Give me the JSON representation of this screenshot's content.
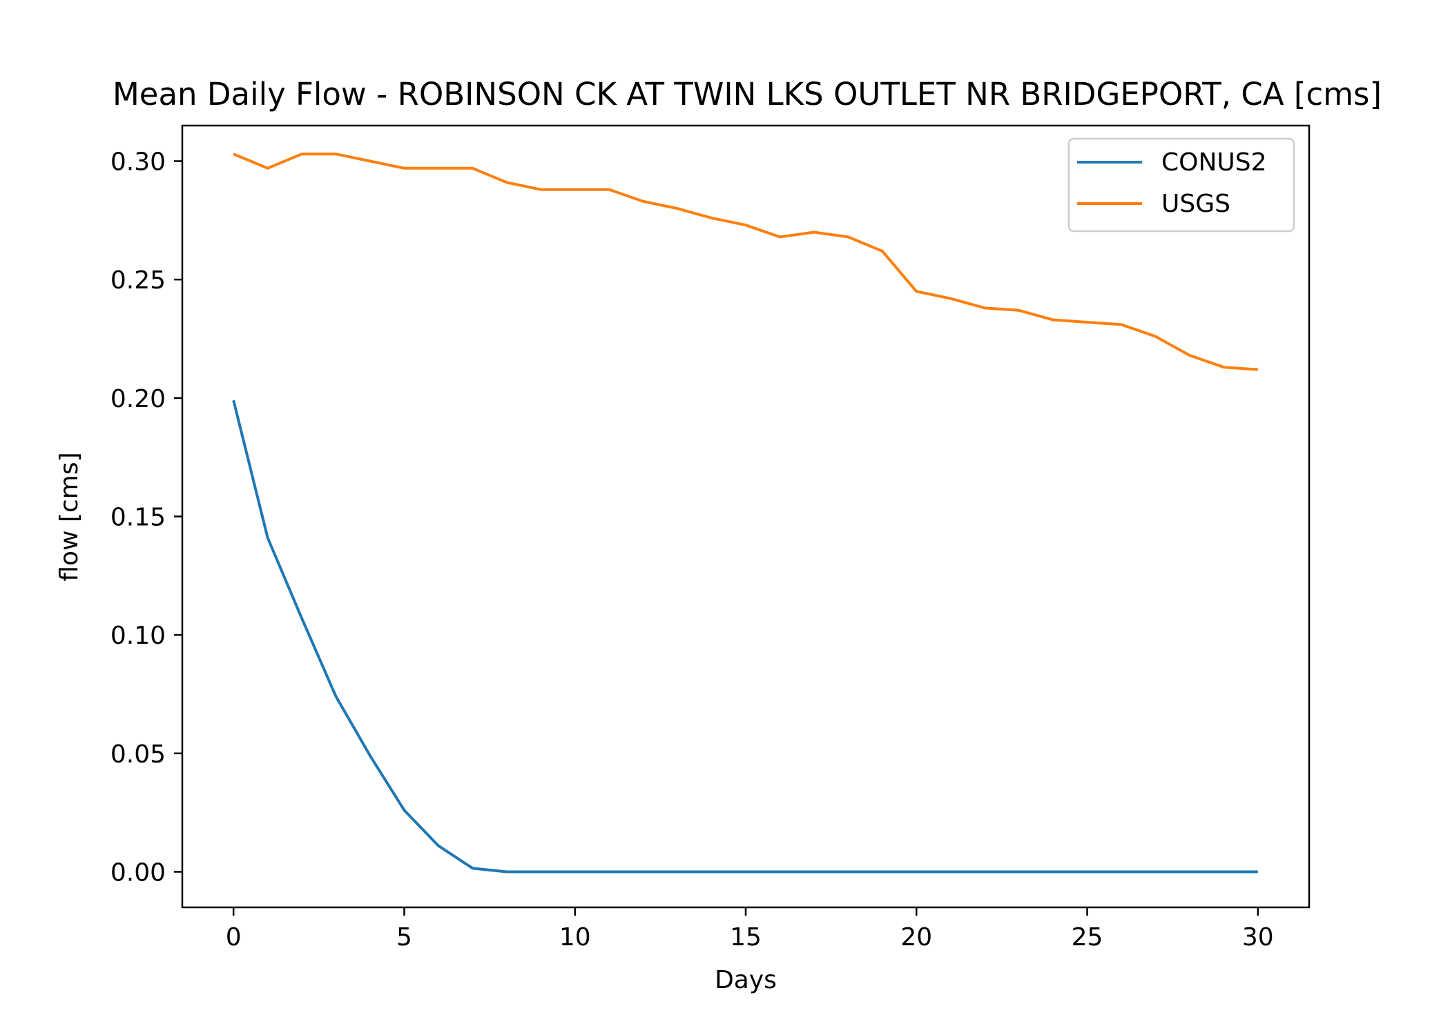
{
  "chart_data": {
    "type": "line",
    "title": "Mean Daily Flow - ROBINSON CK AT TWIN LKS OUTLET NR BRIDGEPORT, CA [cms]",
    "xlabel": "Days",
    "ylabel": "flow [cms]",
    "xlim": [
      -1.5,
      31.5
    ],
    "ylim": [
      -0.015,
      0.315
    ],
    "xticks": [
      0,
      5,
      10,
      15,
      20,
      25,
      30
    ],
    "xtick_labels": [
      "0",
      "5",
      "10",
      "15",
      "20",
      "25",
      "30"
    ],
    "yticks": [
      0.0,
      0.05,
      0.1,
      0.15,
      0.2,
      0.25,
      0.3
    ],
    "ytick_labels": [
      "0.00",
      "0.05",
      "0.10",
      "0.15",
      "0.20",
      "0.25",
      "0.30"
    ],
    "grid": false,
    "legend_position": "upper right",
    "x": [
      0,
      1,
      2,
      3,
      4,
      5,
      6,
      7,
      8,
      9,
      10,
      11,
      12,
      13,
      14,
      15,
      16,
      17,
      18,
      19,
      20,
      21,
      22,
      23,
      24,
      25,
      26,
      27,
      28,
      29,
      30
    ],
    "series": [
      {
        "name": "CONUS2",
        "color": "#1f77b4",
        "values": [
          0.199,
          0.141,
          0.107,
          0.074,
          0.049,
          0.026,
          0.011,
          0.0015,
          0.0,
          0.0,
          0.0,
          0.0,
          0.0,
          0.0,
          0.0,
          0.0,
          0.0,
          0.0,
          0.0,
          0.0,
          0.0,
          0.0,
          0.0,
          0.0,
          0.0,
          0.0,
          0.0,
          0.0,
          0.0,
          0.0,
          0.0
        ]
      },
      {
        "name": "USGS",
        "color": "#ff7f0e",
        "values": [
          0.303,
          0.297,
          0.303,
          0.303,
          0.3,
          0.297,
          0.297,
          0.297,
          0.291,
          0.288,
          0.288,
          0.288,
          0.283,
          0.28,
          0.276,
          0.273,
          0.268,
          0.27,
          0.268,
          0.262,
          0.245,
          0.242,
          0.238,
          0.237,
          0.233,
          0.232,
          0.231,
          0.226,
          0.218,
          0.213,
          0.212
        ]
      }
    ]
  }
}
